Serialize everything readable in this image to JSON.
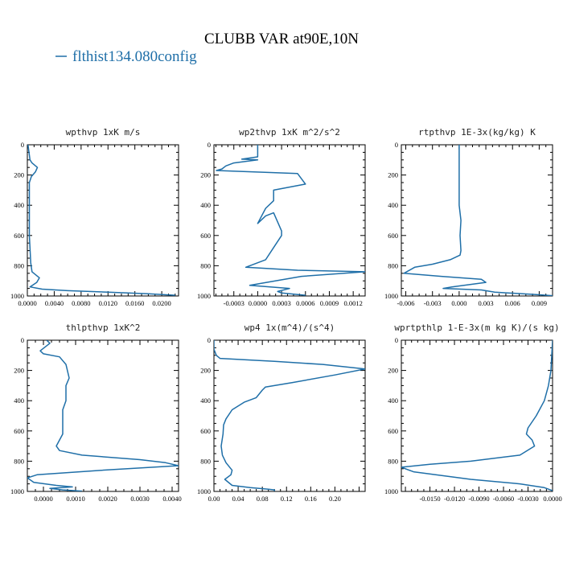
{
  "title": "CLUBB VAR at90E,10N",
  "legend": {
    "label": "flthist134.080config",
    "color": "#1f6fa8"
  },
  "line_color": "#1f6fa8",
  "chart_data": [
    {
      "type": "line",
      "title": "wpthvp   1xK m/s",
      "xlim": [
        0.0,
        0.0225
      ],
      "ylim": [
        1000,
        0
      ],
      "xticks": [
        0.0,
        0.004,
        0.008,
        0.012,
        0.016,
        0.02
      ],
      "xtick_labels": [
        "0.0000",
        "0.0040",
        "0.0080",
        "0.0120",
        "0.0160",
        "0.0200"
      ],
      "yticks": [
        0,
        200,
        400,
        600,
        800,
        1000
      ],
      "series": [
        {
          "x": [
            0.0001,
            0.0004,
            0.0007,
            0.0015,
            0.0012,
            0.0006,
            0.0003,
            0.0003,
            0.0003,
            0.0005,
            0.0007,
            0.0018,
            0.0014,
            0.0004,
            0.0022,
            0.006,
            0.012,
            0.018,
            0.022
          ],
          "y": [
            0,
            100,
            120,
            150,
            180,
            210,
            250,
            400,
            600,
            780,
            840,
            880,
            910,
            940,
            955,
            965,
            975,
            985,
            995
          ]
        }
      ]
    },
    {
      "type": "line",
      "title": "wp2thvp   1xK m^2/s^2",
      "xlim": [
        -0.00055,
        0.00135
      ],
      "ylim": [
        1000,
        0
      ],
      "xticks": [
        -0.0003,
        0.0,
        0.0003,
        0.0006,
        0.0009,
        0.0012
      ],
      "xtick_labels": [
        "-0.0003",
        "0.0000",
        "0.0003",
        "0.0006",
        "0.0009",
        "0.0012"
      ],
      "yticks": [
        0,
        200,
        400,
        600,
        800,
        1000
      ],
      "series": [
        {
          "x": [
            0.0,
            0.0,
            -0.0002,
            0.0,
            -0.0003,
            -0.0004,
            -0.00045,
            -0.00052,
            0.0005,
            0.0006,
            0.0004,
            0.0002,
            0.0002,
            0.0001,
            0.0,
            0.0001,
            0.0002,
            0.0003,
            0.0003,
            0.0002,
            0.0001,
            -0.00015,
            0.0005,
            0.00135,
            0.00055,
            -0.0001,
            0.0004,
            0.00025,
            0.0003,
            0.0006
          ],
          "y": [
            0,
            80,
            95,
            100,
            120,
            140,
            160,
            170,
            190,
            260,
            280,
            300,
            370,
            420,
            520,
            470,
            450,
            570,
            600,
            680,
            760,
            810,
            830,
            840,
            870,
            930,
            950,
            970,
            980,
            995
          ]
        }
      ]
    },
    {
      "type": "line",
      "title": "rtpthvp   1E-3x(kg/kg) K",
      "xlim": [
        -0.0065,
        0.0105
      ],
      "ylim": [
        1000,
        0
      ],
      "xticks": [
        -0.006,
        -0.003,
        0.0,
        0.003,
        0.006,
        0.009
      ],
      "xtick_labels": [
        "-0.006",
        "-0.003",
        "0.000",
        "0.003",
        "0.006",
        "0.009"
      ],
      "yticks": [
        0,
        200,
        400,
        600,
        800,
        1000
      ],
      "series": [
        {
          "x": [
            0.0,
            0.0,
            0.0,
            0.0002,
            0.0001,
            0.0002,
            0.0001,
            -0.001,
            -0.003,
            -0.005,
            -0.0062,
            -0.002,
            0.0025,
            0.003,
            -0.0008,
            -0.0018,
            0.0025,
            0.004,
            0.0085,
            0.0105
          ],
          "y": [
            0,
            200,
            400,
            500,
            600,
            700,
            730,
            760,
            790,
            810,
            850,
            870,
            890,
            910,
            940,
            950,
            960,
            975,
            990,
            998
          ]
        }
      ]
    },
    {
      "type": "line",
      "title": "thlpthvp   1xK^2",
      "xlim": [
        -0.0005,
        0.0042
      ],
      "ylim": [
        1000,
        0
      ],
      "xticks": [
        0.0,
        0.001,
        0.002,
        0.003,
        0.004
      ],
      "xtick_labels": [
        "0.0000",
        "0.0010",
        "0.0020",
        "0.0030",
        "0.0040"
      ],
      "yticks": [
        0,
        200,
        400,
        600,
        800,
        1000
      ],
      "series": [
        {
          "x": [
            0.0001,
            0.0002,
            -0.0001,
            0.0,
            0.0005,
            0.0007,
            0.0008,
            0.0007,
            0.0007,
            0.0006,
            0.0006,
            0.0006,
            0.0004,
            0.0005,
            0.0012,
            0.003,
            0.0038,
            0.0042,
            0.0018,
            -0.0002,
            -0.0005,
            -0.0003,
            0.0004,
            0.0009,
            0.0002,
            0.0006,
            0.001,
            0.0012
          ],
          "y": [
            0,
            20,
            70,
            90,
            110,
            160,
            250,
            300,
            400,
            460,
            550,
            620,
            700,
            730,
            760,
            790,
            810,
            830,
            860,
            890,
            910,
            940,
            960,
            970,
            980,
            990,
            995,
            998
          ]
        }
      ]
    },
    {
      "type": "line",
      "title": "wp4   1x(m^4)/(s^4)",
      "xlim": [
        0.0,
        0.25
      ],
      "ylim": [
        1000,
        0
      ],
      "xticks": [
        0.0,
        0.04,
        0.08,
        0.12,
        0.16,
        0.2
      ],
      "xtick_labels": [
        "0.00",
        "0.04",
        "0.08",
        "0.12",
        "0.16",
        "0.20"
      ],
      "yticks": [
        0,
        200,
        400,
        600,
        800,
        1000
      ],
      "series": [
        {
          "x": [
            0.0,
            0.0,
            0.004,
            0.01,
            0.1,
            0.18,
            0.25,
            0.2,
            0.13,
            0.085,
            0.08,
            0.07,
            0.05,
            0.03,
            0.02,
            0.016,
            0.015,
            0.012,
            0.014,
            0.02,
            0.03,
            0.028,
            0.018,
            0.03,
            0.06,
            0.09,
            0.1,
            0.1
          ],
          "y": [
            0,
            60,
            100,
            120,
            140,
            160,
            190,
            230,
            280,
            310,
            330,
            380,
            410,
            460,
            520,
            560,
            620,
            700,
            760,
            810,
            860,
            890,
            920,
            960,
            975,
            985,
            990,
            998
          ]
        }
      ]
    },
    {
      "type": "line",
      "title": "wprtpthlp   1-E-3x(m kg K)/(s kg)",
      "xlim": [
        -0.0185,
        0.0
      ],
      "ylim": [
        1000,
        0
      ],
      "xticks": [
        -0.015,
        -0.012,
        -0.009,
        -0.006,
        -0.003,
        0.0
      ],
      "xtick_labels": [
        "-0.0150",
        "-0.0120",
        "-0.0090",
        "-0.0060",
        "-0.0030",
        "0.0000"
      ],
      "yticks": [
        0,
        200,
        400,
        600,
        800,
        1000
      ],
      "series": [
        {
          "x": [
            0.0,
            -0.0002,
            -0.0005,
            -0.001,
            -0.002,
            -0.003,
            -0.0032,
            -0.0025,
            -0.0022,
            -0.004,
            -0.01,
            -0.015,
            -0.0185,
            -0.017,
            -0.01,
            -0.004,
            -0.001,
            0.0
          ],
          "y": [
            0,
            200,
            300,
            400,
            500,
            580,
            620,
            660,
            700,
            760,
            800,
            820,
            840,
            870,
            920,
            950,
            975,
            995
          ]
        }
      ]
    }
  ]
}
